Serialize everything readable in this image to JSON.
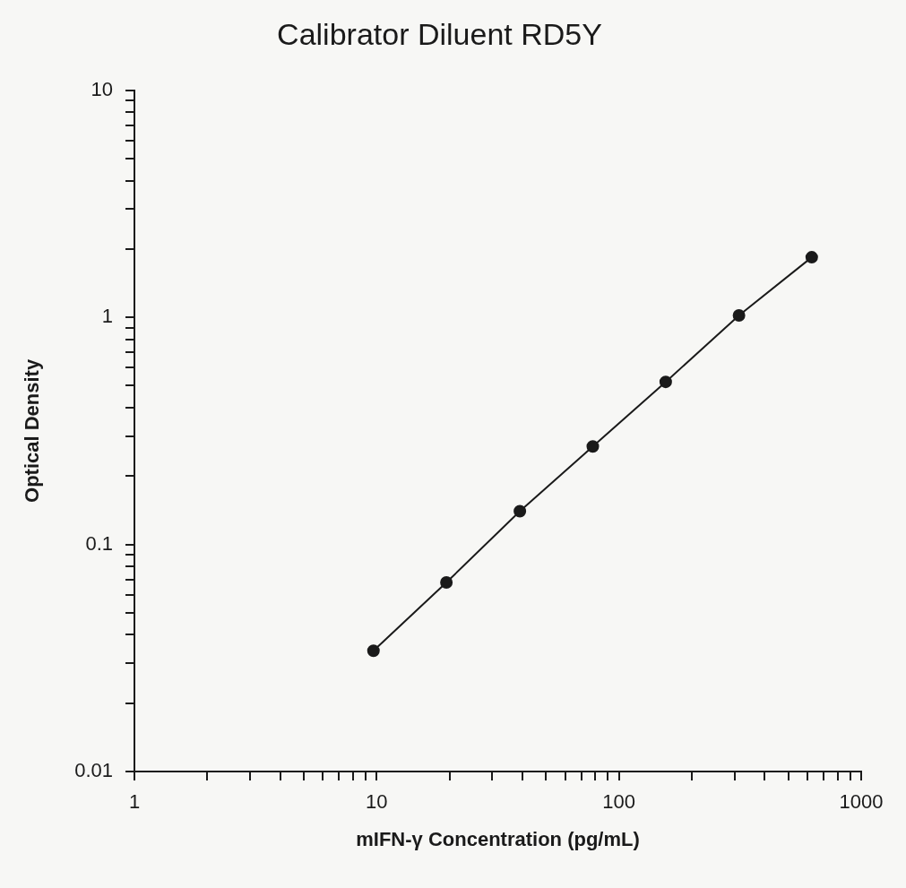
{
  "chart_data": {
    "type": "line",
    "title": "Calibrator Diluent RD5Y",
    "xlabel": "mIFN-γ Concentration (pg/mL)",
    "ylabel": "Optical Density",
    "x": [
      9.7,
      19.4,
      39,
      78,
      156,
      313,
      625
    ],
    "series": [
      {
        "color": "#1a1a1a",
        "values": [
          0.034,
          0.068,
          0.14,
          0.27,
          0.52,
          1.02,
          1.84
        ]
      }
    ],
    "log": "xy",
    "xlim": [
      1,
      1000
    ],
    "ylim": [
      0.01,
      10
    ],
    "xticks": [
      1,
      {
        "value": 2,
        "label": null
      },
      {
        "value": 3,
        "label": null
      },
      {
        "value": 4,
        "label": null
      },
      {
        "value": 5,
        "label": null
      },
      {
        "value": 6,
        "label": null
      },
      {
        "value": 7,
        "label": null
      },
      {
        "value": 8,
        "label": null
      },
      {
        "value": 9,
        "label": null
      },
      10,
      {
        "value": 20,
        "label": null
      },
      {
        "value": 30,
        "label": null
      },
      {
        "value": 40,
        "label": null
      },
      {
        "value": 50,
        "label": null
      },
      {
        "value": 60,
        "label": null
      },
      {
        "value": 70,
        "label": null
      },
      {
        "value": 80,
        "label": null
      },
      {
        "value": 90,
        "label": null
      },
      100,
      {
        "value": 200,
        "label": null
      },
      {
        "value": 300,
        "label": null
      },
      {
        "value": 400,
        "label": null
      },
      {
        "value": 500,
        "label": null
      },
      {
        "value": 600,
        "label": null
      },
      {
        "value": 700,
        "label": null
      },
      {
        "value": 800,
        "label": null
      },
      {
        "value": 900,
        "label": null
      },
      1000
    ],
    "yticks": [
      0.01,
      {
        "value": 0.02,
        "label": null
      },
      {
        "value": 0.03,
        "label": null
      },
      {
        "value": 0.04,
        "label": null
      },
      {
        "value": 0.05,
        "label": null
      },
      {
        "value": 0.06,
        "label": null
      },
      {
        "value": 0.07,
        "label": null
      },
      {
        "value": 0.08,
        "label": null
      },
      {
        "value": 0.09,
        "label": null
      },
      0.1,
      {
        "value": 0.2,
        "label": null
      },
      {
        "value": 0.3,
        "label": null
      },
      {
        "value": 0.4,
        "label": null
      },
      {
        "value": 0.5,
        "label": null
      },
      {
        "value": 0.6,
        "label": null
      },
      {
        "value": 0.7,
        "label": null
      },
      {
        "value": 0.8,
        "label": null
      },
      {
        "value": 0.9,
        "label": null
      },
      1,
      {
        "value": 2,
        "label": null
      },
      {
        "value": 3,
        "label": null
      },
      {
        "value": 4,
        "label": null
      },
      {
        "value": 5,
        "label": null
      },
      {
        "value": 6,
        "label": null
      },
      {
        "value": 7,
        "label": null
      },
      {
        "value": 8,
        "label": null
      },
      {
        "value": 9,
        "label": null
      },
      10
    ],
    "grid": false,
    "legend": false,
    "marker": "circle",
    "line_style": "solid"
  }
}
